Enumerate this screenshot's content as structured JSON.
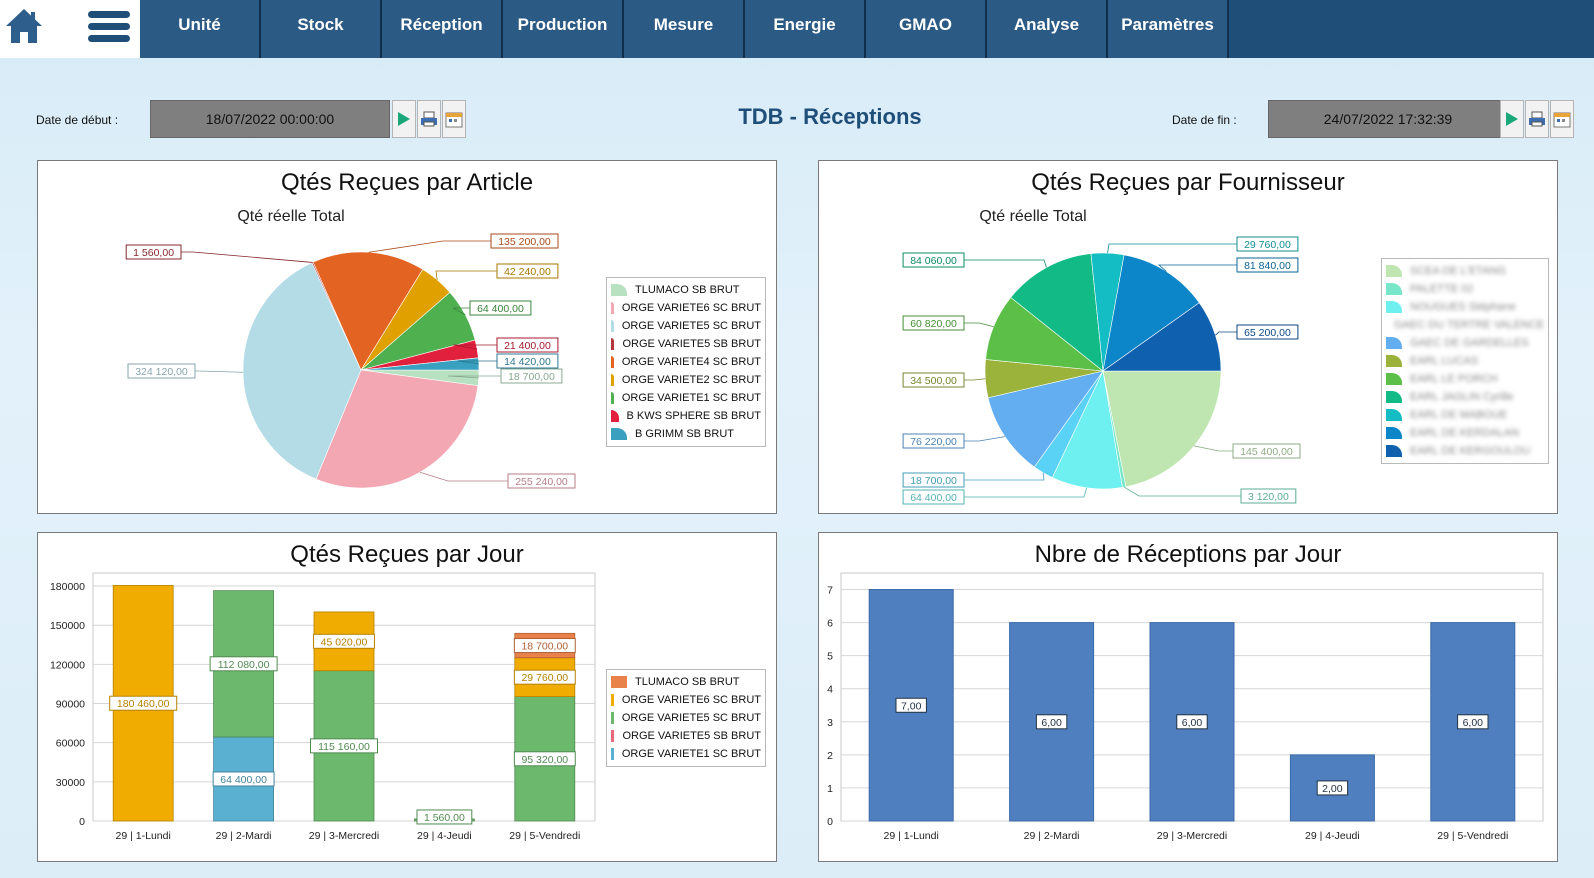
{
  "nav": {
    "items": [
      "Unité",
      "Stock",
      "Réception",
      "Production",
      "Mesure",
      "Energie",
      "GMAO",
      "Analyse",
      "Paramètres"
    ]
  },
  "header": {
    "title": "TDB - Réceptions",
    "start_label": "Date de début :",
    "start_value": "18/07/2022 00:00:00",
    "end_label": "Date de fin :",
    "end_value": "24/07/2022 17:32:39"
  },
  "colors": {
    "nav_bg": "#2b5a84",
    "bar_blue": "#4f7fbf",
    "accent": "#1f4e79"
  },
  "panels": {
    "article": {
      "title": "Qtés Reçues par Article",
      "chart_data": {
        "type": "pie",
        "subtitle": "Qté réelle Total",
        "slices": [
          {
            "label": "TLUMACO SB BRUT",
            "value_label": "18 700,00",
            "value": 18700,
            "color": "#b7e1c1"
          },
          {
            "label": "ORGE VARIETE6 SC BRUT",
            "value_label": "255 240,00",
            "value": 255240,
            "color": "#f2a7b3"
          },
          {
            "label": "ORGE VARIETE5 SC BRUT",
            "value_label": "324 120,00",
            "value": 324120,
            "color": "#b3dce6"
          },
          {
            "label": "ORGE VARIETE5 SB BRUT",
            "value_label": "1 560,00",
            "value": 1560,
            "color": "#b5353b"
          },
          {
            "label": "ORGE VARIETE4 SC BRUT",
            "value_label": "135 200,00",
            "value": 135200,
            "color": "#e36422"
          },
          {
            "label": "ORGE VARIETE2 SC BRUT",
            "value_label": "42 240,00",
            "value": 42240,
            "color": "#e0a000"
          },
          {
            "label": "ORGE VARIETE1 SC BRUT",
            "value_label": "64 400,00",
            "value": 64400,
            "color": "#4fb04f"
          },
          {
            "label": "B KWS SPHERE SB BRUT",
            "value_label": "21 400,00",
            "value": 21400,
            "color": "#e0203d"
          },
          {
            "label": "B GRIMM SB BRUT",
            "value_label": "14 420,00",
            "value": 14420,
            "color": "#3aa0c0"
          }
        ]
      }
    },
    "fournisseur": {
      "title": "Qtés Reçues par Fournisseur",
      "chart_data": {
        "type": "pie",
        "subtitle": "Qté réelle Total",
        "slices": [
          {
            "label": "SCEA DE L'ETANG",
            "value_label": "145 400,00",
            "value": 145400,
            "color": "#bfe6b0"
          },
          {
            "label": "PALETTE 02",
            "value_label": "3 120,00",
            "value": 3120,
            "color": "#78e6c8"
          },
          {
            "label": "NOUGUES Stéphane",
            "value_label": "64 400,00",
            "value": 64400,
            "color": "#6ef0f0"
          },
          {
            "label": "GAEC DU TERTRE VALENCE",
            "value_label": "18 700,00",
            "value": 18700,
            "color": "#5ad2f5"
          },
          {
            "label": "GAEC DE GARDELLES",
            "value_label": "76 220,00",
            "value": 76220,
            "color": "#62aef0"
          },
          {
            "label": "EARL LUCAS",
            "value_label": "34 500,00",
            "value": 34500,
            "color": "#9bb33b"
          },
          {
            "label": "EARL LE PORCH",
            "value_label": "60 820,00",
            "value": 60820,
            "color": "#5cbf47"
          },
          {
            "label": "EARL JAGLIN Cyrille",
            "value_label": "84 060,00",
            "value": 84060,
            "color": "#12ba86"
          },
          {
            "label": "EARL DE MABOUE",
            "value_label": "29 760,00",
            "value": 29760,
            "color": "#14bcc4"
          },
          {
            "label": "EARL DE KERDALAN",
            "value_label": "81 840,00",
            "value": 81840,
            "color": "#0c86c8"
          },
          {
            "label": "EARL DE KERGOULOU",
            "value_label": "65 200,00",
            "value": 65200,
            "color": "#1060b0"
          }
        ]
      }
    },
    "jour_qte": {
      "title": "Qtés Reçues par Jour",
      "chart_data": {
        "type": "bar",
        "categories": [
          "29 | 1-Lundi",
          "29 | 2-Mardi",
          "29 | 3-Mercredi",
          "29 | 4-Jeudi",
          "29 | 5-Vendredi"
        ],
        "ylim": [
          0,
          190000
        ],
        "yticks": [
          0,
          30000,
          60000,
          90000,
          120000,
          150000,
          180000
        ],
        "ytick_labels": [
          "0",
          "30000",
          "60000",
          "90000",
          "120000",
          "150000",
          "180000"
        ],
        "series": [
          {
            "name": "ORGE VARIETE1 SC BRUT",
            "color": "#5ab0d0",
            "values": [
              0,
              64400,
              0,
              0,
              0
            ],
            "labels": [
              "",
              "64 400,00",
              "",
              "",
              ""
            ]
          },
          {
            "name": "ORGE VARIETE5 SC BRUT",
            "color": "#6cb86c",
            "values": [
              0,
              112080,
              115160,
              1560,
              95320
            ],
            "labels": [
              "",
              "112 080,00",
              "115 160,00",
              "1 560,00",
              "95 320,00"
            ]
          },
          {
            "name": "ORGE VARIETE6 SC BRUT",
            "color": "#f0ac00",
            "values": [
              180460,
              0,
              45020,
              0,
              29760
            ],
            "labels": [
              "180 460,00",
              "",
              "45 020,00",
              "",
              "29 760,00"
            ]
          },
          {
            "name": "ORGE VARIETE5 SB BRUT",
            "color": "#e86a7a",
            "values": [
              0,
              0,
              0,
              0,
              0
            ],
            "labels": [
              "",
              "",
              "",
              "",
              ""
            ]
          },
          {
            "name": "TLUMACO SB BRUT",
            "color": "#e8824a",
            "values": [
              0,
              0,
              0,
              0,
              18700
            ],
            "labels": [
              "",
              "",
              "",
              "",
              "18 700,00"
            ]
          }
        ],
        "legend": [
          "TLUMACO SB BRUT",
          "ORGE VARIETE6 SC BRUT",
          "ORGE VARIETE5 SC BRUT",
          "ORGE VARIETE5 SB BRUT",
          "ORGE VARIETE1 SC BRUT"
        ]
      }
    },
    "jour_nbre": {
      "title": "Nbre de Réceptions par Jour",
      "chart_data": {
        "type": "bar",
        "categories": [
          "29 | 1-Lundi",
          "29 | 2-Mardi",
          "29 | 3-Mercredi",
          "29 | 4-Jeudi",
          "29 | 5-Vendredi"
        ],
        "values": [
          7,
          6,
          6,
          2,
          6
        ],
        "value_labels": [
          "7,00",
          "6,00",
          "6,00",
          "2,00",
          "6,00"
        ],
        "ylim": [
          0,
          7.5
        ],
        "yticks": [
          0,
          1,
          2,
          3,
          4,
          5,
          6,
          7
        ],
        "ytick_labels": [
          "0",
          "1",
          "2",
          "3",
          "4",
          "5",
          "6",
          "7"
        ]
      }
    }
  }
}
